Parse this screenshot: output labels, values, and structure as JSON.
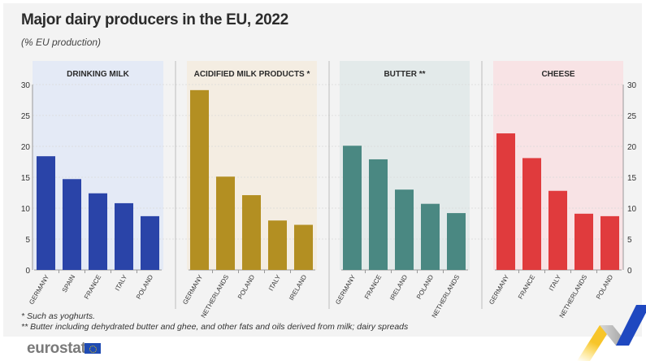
{
  "header": {
    "title": "Major dairy producers in the EU, 2022",
    "subtitle": "(% EU production)"
  },
  "footnotes": [
    "* Such as yoghurts.",
    "** Butter including dehydrated butter and ghee, and other fats and oils derived from milk; dairy spreads"
  ],
  "logo": {
    "text": "eurostat",
    "icon": "eu-flag-icon"
  },
  "chart_data": [
    {
      "type": "bar",
      "title": "DRINKING MILK",
      "categories": [
        "GERMANY",
        "SPAIN",
        "FRANCE",
        "ITALY",
        "POLAND"
      ],
      "values": [
        18.4,
        14.7,
        12.4,
        10.8,
        8.7
      ],
      "color": "#2a44a8",
      "panel_bg": "#e4eaf6",
      "ylim": [
        0,
        30
      ],
      "yticks": [
        0,
        5,
        10,
        15,
        20,
        25,
        30
      ],
      "grid": true,
      "ylabel": "",
      "xlabel": ""
    },
    {
      "type": "bar",
      "title": "ACIDIFIED MILK PRODUCTS *",
      "categories": [
        "GERMANY",
        "NETHERLANDS",
        "POLAND",
        "ITALY",
        "IRELAND"
      ],
      "values": [
        29.1,
        15.1,
        12.1,
        8.0,
        7.3
      ],
      "color": "#b38f22",
      "panel_bg": "#f4ede2",
      "ylim": [
        0,
        30
      ],
      "grid": true
    },
    {
      "type": "bar",
      "title": "BUTTER **",
      "categories": [
        "GERMANY",
        "FRANCE",
        "IRELAND",
        "POLAND",
        "NETHERLANDS"
      ],
      "values": [
        20.1,
        17.9,
        13.0,
        10.7,
        9.2
      ],
      "color": "#4a8882",
      "panel_bg": "#e3eaea",
      "ylim": [
        0,
        30
      ],
      "grid": true
    },
    {
      "type": "bar",
      "title": "CHEESE",
      "categories": [
        "GERMANY",
        "FRANCE",
        "ITALY",
        "NETHERLANDS",
        "POLAND"
      ],
      "values": [
        22.1,
        18.1,
        12.8,
        9.1,
        8.7
      ],
      "color": "#e03b3d",
      "panel_bg": "#f8e3e5",
      "ylim": [
        0,
        30
      ],
      "yticks": [
        0,
        5,
        10,
        15,
        20,
        25,
        30
      ],
      "grid": true
    }
  ]
}
